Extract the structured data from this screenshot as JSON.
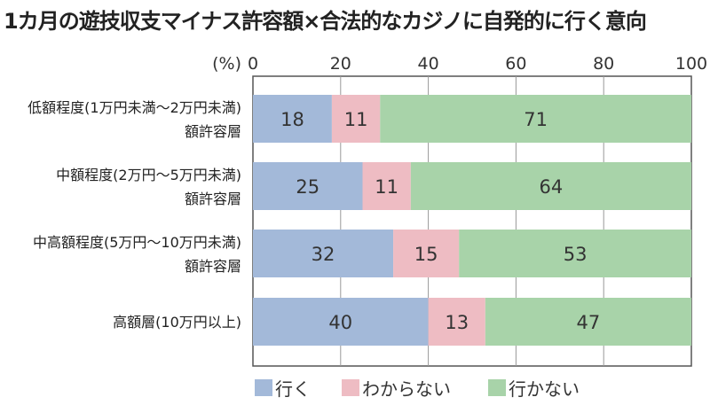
{
  "chart_data": {
    "type": "bar",
    "orientation": "horizontal",
    "stacked": true,
    "title": "1カ月の遊技収支マイナス許容額×合法的なカジノに自発的に行く意向",
    "xlabel": "(%)",
    "xlim": [
      0,
      100
    ],
    "xticks": [
      "0",
      "20",
      "40",
      "60",
      "80",
      "100"
    ],
    "grid": true,
    "legend_position": "bottom",
    "categories": [
      [
        "低額程度(1万円未満～2万円未満)",
        "額許容層"
      ],
      [
        "中額程度(2万円～5万円未満)",
        "額許容層"
      ],
      [
        "中高額程度(5万円～10万円未満)",
        "額許容層"
      ],
      [
        "高額層(10万円以上)"
      ]
    ],
    "series": [
      {
        "name": "行く",
        "color": "#a3b9d9",
        "values": [
          18,
          25,
          32,
          40
        ]
      },
      {
        "name": "わからない",
        "color": "#eebcc3",
        "values": [
          11,
          11,
          15,
          13
        ]
      },
      {
        "name": "行かない",
        "color": "#a8d3a9",
        "values": [
          71,
          64,
          53,
          47
        ]
      }
    ]
  }
}
